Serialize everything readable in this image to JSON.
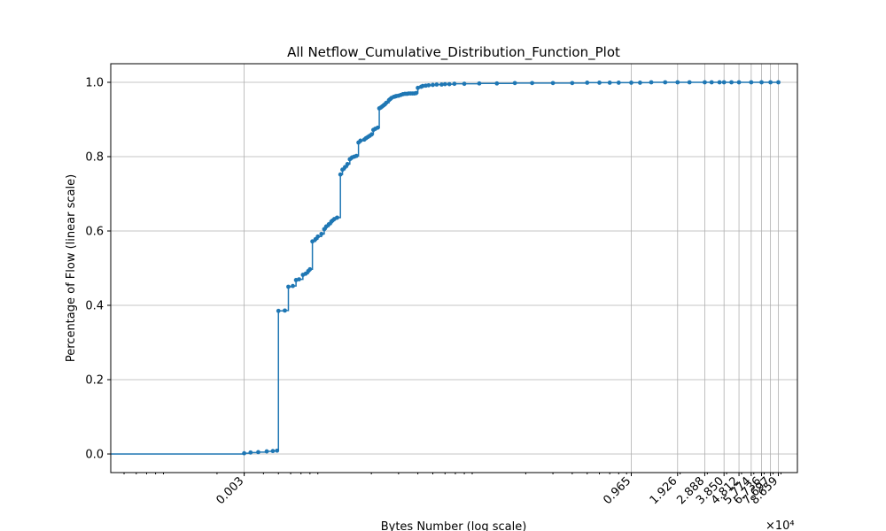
{
  "chart_data": {
    "type": "line",
    "title": "All Netflow_Cumulative_Distribution_Function_Plot",
    "xlabel": "Bytes Number (log scale)",
    "ylabel": "Percentage of Flow (linear scale)",
    "x_scale": "log",
    "x_multiplier_label": "×10⁴",
    "y_scale": "linear",
    "xlim": [
      0.00041,
      11.5
    ],
    "ylim": [
      -0.05,
      1.05
    ],
    "grid": true,
    "line_style": "steps-post with dot markers",
    "series_color": "#1f77b4",
    "x_ticks": [
      {
        "value": 0.003,
        "label": "0.003"
      },
      {
        "value": 0.965,
        "label": "0.965"
      },
      {
        "value": 1.926,
        "label": "1.926"
      },
      {
        "value": 2.888,
        "label": "2.888"
      },
      {
        "value": 3.85,
        "label": "3.850"
      },
      {
        "value": 4.812,
        "label": "4.812"
      },
      {
        "value": 5.774,
        "label": "5.774"
      },
      {
        "value": 6.736,
        "label": "6.736"
      },
      {
        "value": 7.697,
        "label": "7.697"
      },
      {
        "value": 8.659,
        "label": "8.659"
      }
    ],
    "y_ticks": [
      {
        "value": 0.0,
        "label": "0.0"
      },
      {
        "value": 0.2,
        "label": "0.2"
      },
      {
        "value": 0.4,
        "label": "0.4"
      },
      {
        "value": 0.6,
        "label": "0.6"
      },
      {
        "value": 0.8,
        "label": "0.8"
      },
      {
        "value": 1.0,
        "label": "1.0"
      }
    ],
    "series": [
      {
        "x": [
          0.00041,
          0.003,
          0.0033,
          0.0037,
          0.0042,
          0.0046,
          0.0049,
          0.005,
          0.0055,
          0.0058,
          0.0062,
          0.0065,
          0.0068,
          0.0072,
          0.0075,
          0.0078,
          0.008,
          0.0083,
          0.0087,
          0.009,
          0.0095,
          0.0099,
          0.0102,
          0.0106,
          0.011,
          0.0112,
          0.0115,
          0.012,
          0.0126,
          0.013,
          0.0135,
          0.014,
          0.0145,
          0.015,
          0.0155,
          0.016,
          0.0165,
          0.017,
          0.018,
          0.0185,
          0.019,
          0.0195,
          0.0201,
          0.0206,
          0.0212,
          0.022,
          0.0225,
          0.023,
          0.0235,
          0.024,
          0.0245,
          0.025,
          0.026,
          0.0265,
          0.027,
          0.028,
          0.0286,
          0.029,
          0.03,
          0.031,
          0.032,
          0.033,
          0.034,
          0.035,
          0.036,
          0.037,
          0.038,
          0.039,
          0.04,
          0.042,
          0.043,
          0.045,
          0.047,
          0.05,
          0.053,
          0.057,
          0.06,
          0.064,
          0.069,
          0.08,
          0.1,
          0.13,
          0.17,
          0.22,
          0.3,
          0.4,
          0.5,
          0.6,
          0.7,
          0.8,
          0.965,
          1.1,
          1.3,
          1.6,
          1.926,
          2.3,
          2.888,
          3.2,
          3.6,
          3.85,
          4.3,
          4.812,
          5.774,
          6.736,
          7.697,
          8.659
        ],
        "y": [
          0.0,
          0.002,
          0.004,
          0.005,
          0.007,
          0.008,
          0.009,
          0.385,
          0.386,
          0.45,
          0.452,
          0.468,
          0.47,
          0.482,
          0.485,
          0.492,
          0.497,
          0.572,
          0.578,
          0.585,
          0.592,
          0.605,
          0.612,
          0.618,
          0.625,
          0.628,
          0.632,
          0.636,
          0.752,
          0.765,
          0.772,
          0.78,
          0.793,
          0.798,
          0.8,
          0.802,
          0.838,
          0.843,
          0.846,
          0.85,
          0.853,
          0.856,
          0.86,
          0.872,
          0.875,
          0.878,
          0.93,
          0.932,
          0.935,
          0.938,
          0.941,
          0.945,
          0.952,
          0.955,
          0.958,
          0.961,
          0.962,
          0.963,
          0.964,
          0.966,
          0.968,
          0.969,
          0.969,
          0.97,
          0.97,
          0.97,
          0.97,
          0.971,
          0.985,
          0.988,
          0.99,
          0.991,
          0.992,
          0.993,
          0.994,
          0.994,
          0.995,
          0.995,
          0.996,
          0.996,
          0.997,
          0.997,
          0.998,
          0.998,
          0.998,
          0.998,
          0.999,
          0.999,
          0.999,
          0.999,
          0.999,
          0.999,
          1.0,
          1.0,
          1.0,
          1.0,
          1.0,
          1.0,
          1.0,
          1.0,
          1.0,
          1.0,
          1.0,
          1.0,
          1.0,
          1.0
        ]
      }
    ]
  }
}
